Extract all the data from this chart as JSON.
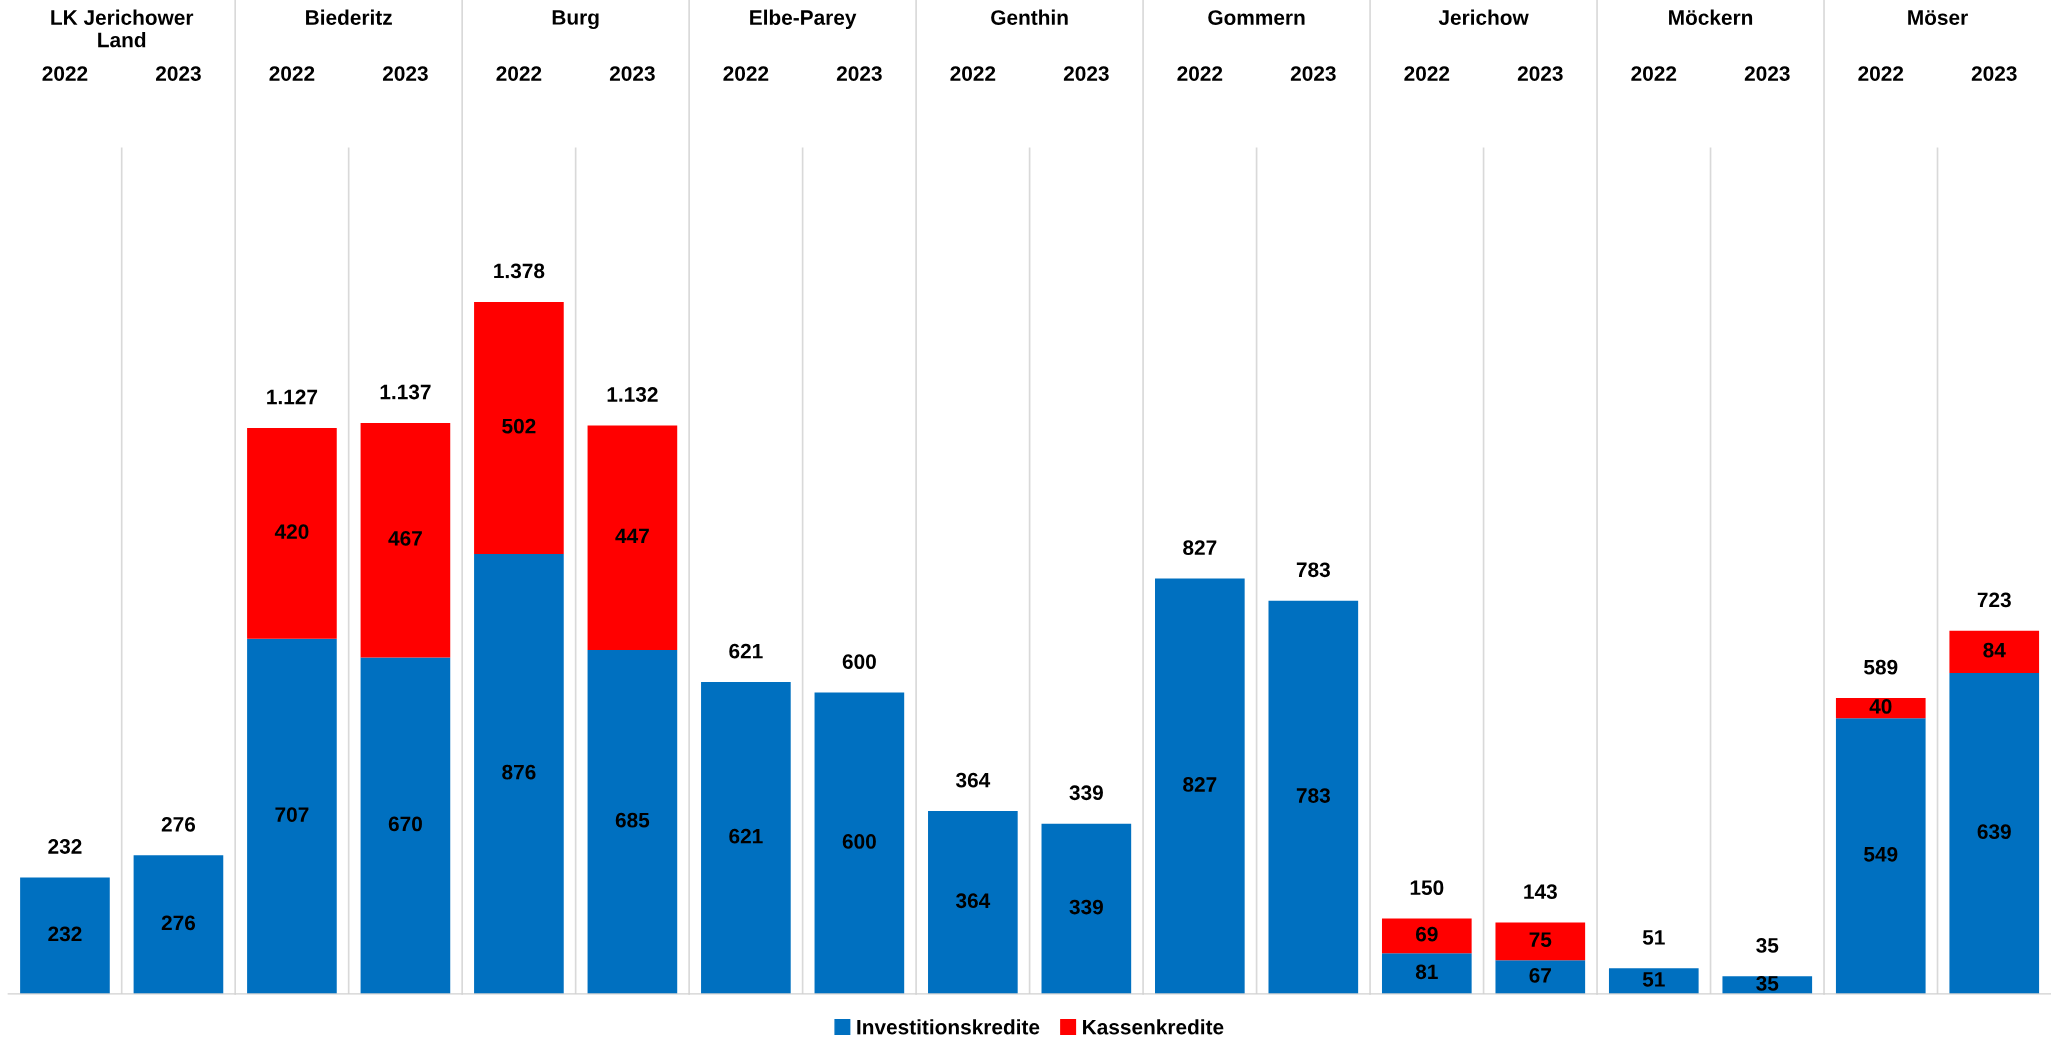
{
  "chart_data": {
    "type": "bar",
    "stacked": true,
    "categories": [
      "2022",
      "2023",
      "2022",
      "2023",
      "2022",
      "2023",
      "2022",
      "2023",
      "2022",
      "2023",
      "2022",
      "2023",
      "2022",
      "2023",
      "2022",
      "2023",
      "2022",
      "2023"
    ],
    "series": [
      {
        "name": "Investitionskredite",
        "color": "#0070c0",
        "values": [
          232,
          276,
          707,
          670,
          876,
          685,
          621,
          600,
          364,
          339,
          827,
          783,
          81,
          67,
          51,
          35,
          549,
          639
        ]
      },
      {
        "name": "Kassenkredite",
        "color": "#ff0000",
        "values": [
          null,
          null,
          420,
          467,
          502,
          447,
          null,
          null,
          null,
          null,
          null,
          null,
          69,
          75,
          null,
          null,
          40,
          84
        ]
      }
    ],
    "totals": [
      "232",
      "276",
      "1.127",
      "1.137",
      "1.378",
      "1.132",
      "621",
      "600",
      "364",
      "339",
      "827",
      "783",
      "150",
      "143",
      "51",
      "35",
      "589",
      "723"
    ],
    "data_labels": true,
    "annotations": [
      "LK Jerichower\nLand",
      "Biederitz",
      "Burg",
      "Elbe-Parey",
      "Genthin",
      "Gommern",
      "Jerichow",
      "Möckern",
      "Möser"
    ],
    "legend": "bottom",
    "grid": false
  }
}
